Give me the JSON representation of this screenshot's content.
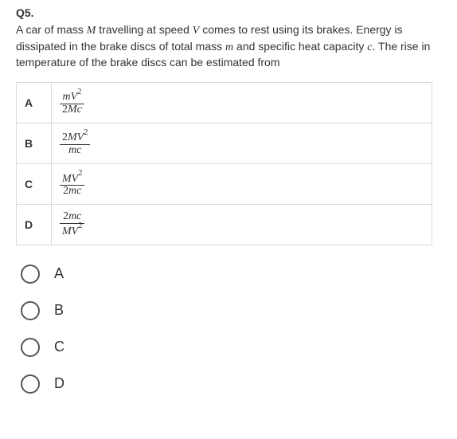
{
  "question": {
    "number": "Q5.",
    "stem_parts": [
      "A car of mass ",
      "M",
      " travelling at speed ",
      "V",
      " comes to rest using its brakes. Energy is dissipated in the brake discs of total mass ",
      "m",
      " and specific heat capacity ",
      "c",
      ". The rise in temperature of the brake discs can be estimated from"
    ]
  },
  "options_table": {
    "columns": [
      "label",
      "expression"
    ],
    "rows": [
      {
        "label": "A",
        "num": "mV²",
        "den": "2Mc"
      },
      {
        "label": "B",
        "num": "2MV²",
        "den": "mc"
      },
      {
        "label": "C",
        "num": "MV²",
        "den": "2mc"
      },
      {
        "label": "D",
        "num": "2mc",
        "den": "MV²"
      }
    ],
    "border_color": "#d9d9d9",
    "font": "Times New Roman italic"
  },
  "answer_choices": [
    {
      "label": "A",
      "selected": false
    },
    {
      "label": "B",
      "selected": false
    },
    {
      "label": "C",
      "selected": false
    },
    {
      "label": "D",
      "selected": false
    }
  ],
  "colors": {
    "text": "#333333",
    "background": "#ffffff",
    "table_border": "#d9d9d9",
    "radio_border": "#555555"
  },
  "typography": {
    "body_font": "Arial",
    "body_size_pt": 11,
    "math_font": "Times New Roman"
  }
}
